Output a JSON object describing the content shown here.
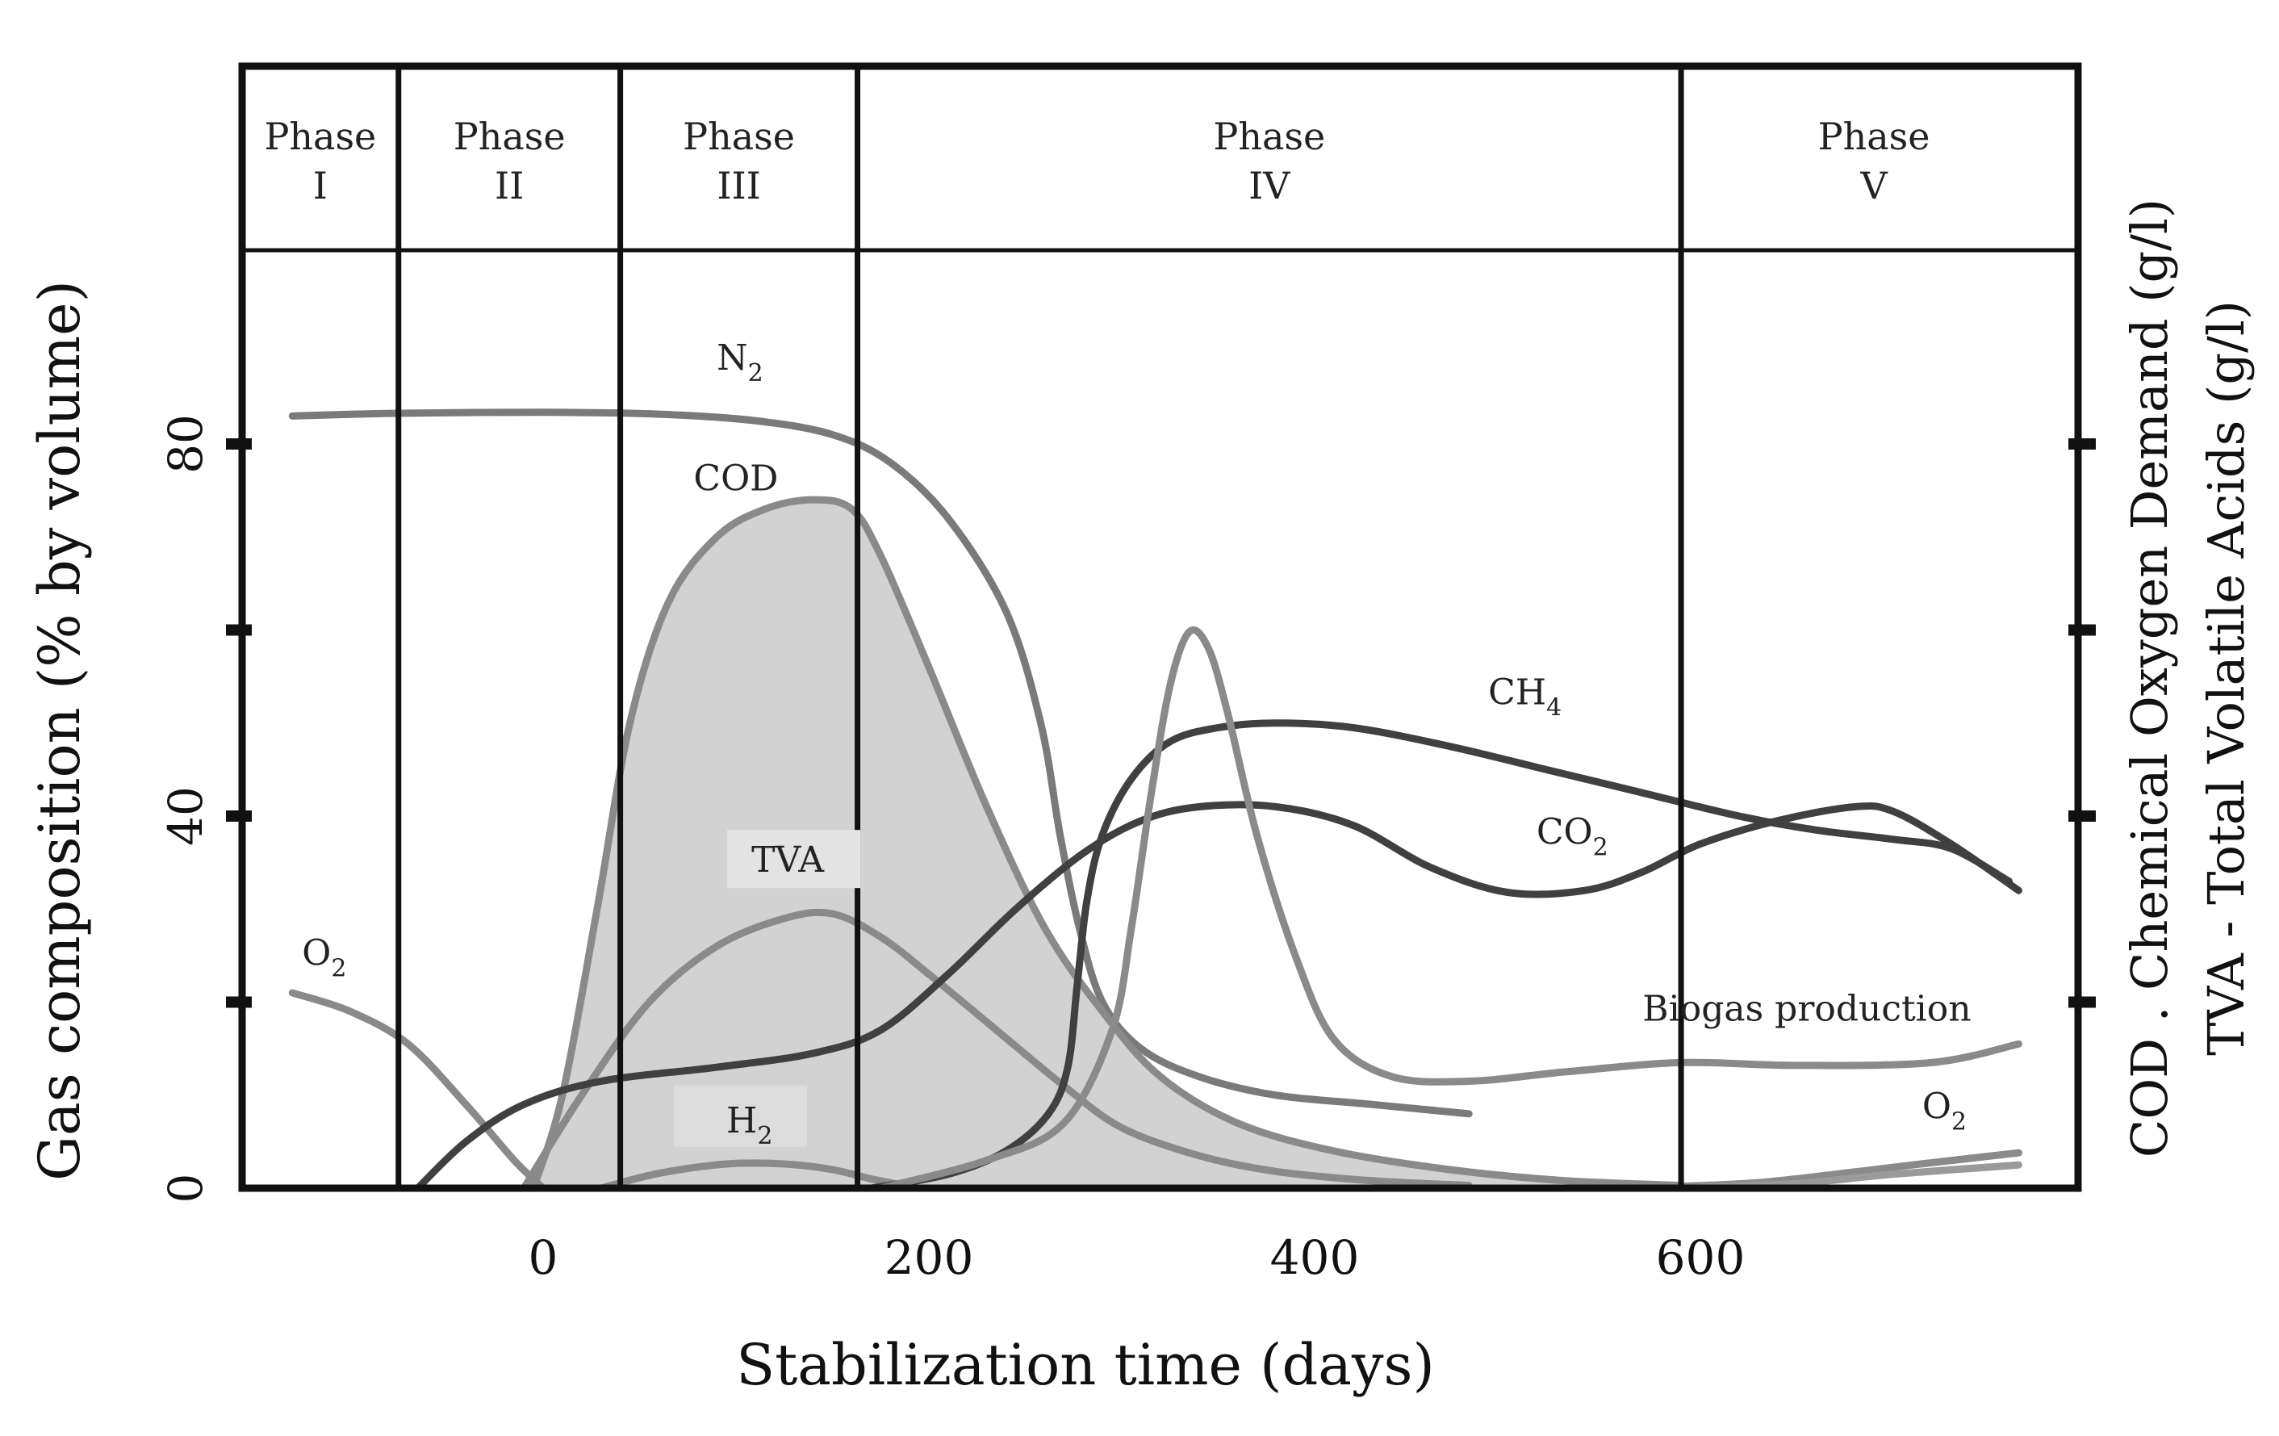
{
  "chart_data": {
    "type": "line",
    "title": "",
    "xlabel": "Stabilization time (days)",
    "ylabel": "Gas composition (% by volume)",
    "ylabel_right": [
      "COD . Chemical Oxygen Demand (g/l)",
      "TVA - Total Volatile Acids (g/l)"
    ],
    "xlim": [
      -160,
      790
    ],
    "ylim": [
      0,
      120
    ],
    "x_ticks": [
      0,
      200,
      400,
      600
    ],
    "y_ticks": [
      0,
      40,
      80
    ],
    "right_axis_ticks": [
      20,
      40,
      60,
      80
    ],
    "grid": false,
    "phases": [
      {
        "line1": "Phase",
        "line2": "I",
        "start": -160,
        "end": -75
      },
      {
        "line1": "Phase",
        "line2": "II",
        "start": -75,
        "end": 40
      },
      {
        "line1": "Phase",
        "line2": "III",
        "start": 40,
        "end": 163
      },
      {
        "line1": "Phase",
        "line2": "IV",
        "start": 163,
        "end": 590
      },
      {
        "line1": "Phase",
        "line2": "V",
        "start": 590,
        "end": 790
      }
    ],
    "series": [
      {
        "name": "N2",
        "label_main": "N",
        "label_sub": "2",
        "color": "#7a7a7a",
        "label_at": [
          90,
          88
        ],
        "points": [
          [
            -130,
            83
          ],
          [
            -75,
            83.3
          ],
          [
            0,
            83.4
          ],
          [
            60,
            83.2
          ],
          [
            110,
            82.5
          ],
          [
            150,
            81
          ],
          [
            180,
            78
          ],
          [
            210,
            72
          ],
          [
            240,
            62
          ],
          [
            258,
            50
          ],
          [
            268,
            38
          ],
          [
            278,
            28
          ],
          [
            290,
            20
          ],
          [
            310,
            15
          ],
          [
            340,
            12
          ],
          [
            380,
            10
          ],
          [
            430,
            9
          ],
          [
            480,
            8
          ]
        ]
      },
      {
        "name": "COD",
        "label_main": "COD",
        "label_sub": "",
        "color": "#8a8a8a",
        "fill": "#d2d2d2",
        "label_at": [
          78,
          75
        ],
        "points": [
          [
            -5,
            0
          ],
          [
            10,
            10
          ],
          [
            28,
            30
          ],
          [
            45,
            50
          ],
          [
            65,
            63
          ],
          [
            90,
            70
          ],
          [
            115,
            73
          ],
          [
            140,
            74
          ],
          [
            160,
            73
          ],
          [
            175,
            68
          ],
          [
            200,
            56
          ],
          [
            230,
            41
          ],
          [
            260,
            28
          ],
          [
            290,
            19
          ],
          [
            320,
            12
          ],
          [
            360,
            7
          ],
          [
            410,
            4
          ],
          [
            470,
            2
          ],
          [
            530,
            0.8
          ],
          [
            590,
            0.3
          ]
        ]
      },
      {
        "name": "TVA",
        "label_main": "TVA",
        "label_sub": "",
        "color": "#8a8a8a",
        "label_at": [
          108,
          34
        ],
        "points": [
          [
            -10,
            0
          ],
          [
            20,
            10
          ],
          [
            55,
            20
          ],
          [
            90,
            26
          ],
          [
            125,
            29
          ],
          [
            150,
            29.5
          ],
          [
            175,
            27
          ],
          [
            200,
            23
          ],
          [
            235,
            17
          ],
          [
            270,
            11
          ],
          [
            300,
            6.5
          ],
          [
            340,
            3.5
          ],
          [
            380,
            1.8
          ],
          [
            430,
            0.8
          ],
          [
            480,
            0.3
          ]
        ]
      },
      {
        "name": "H2",
        "label_main": "H",
        "label_sub": "2",
        "color": "#8a8a8a",
        "label_at": [
          95,
          6
        ],
        "points": [
          [
            30,
            0
          ],
          [
            60,
            1.6
          ],
          [
            95,
            2.6
          ],
          [
            125,
            2.6
          ],
          [
            150,
            2
          ],
          [
            170,
            1
          ],
          [
            190,
            0.2
          ]
        ]
      },
      {
        "name": "O2 (early)",
        "label_main": "O",
        "label_sub": "2",
        "color": "#8a8a8a",
        "label_at": [
          -125,
          24
        ],
        "points": [
          [
            -130,
            21
          ],
          [
            -100,
            19
          ],
          [
            -70,
            15.5
          ],
          [
            -40,
            9
          ],
          [
            -15,
            3
          ],
          [
            0,
            0
          ]
        ]
      },
      {
        "name": "CH4",
        "label_main": "CH",
        "label_sub": "4",
        "color": "#404040",
        "label_at": [
          490,
          52
        ],
        "points": [
          [
            170,
            0
          ],
          [
            210,
            1.5
          ],
          [
            240,
            4
          ],
          [
            262,
            8
          ],
          [
            272,
            13
          ],
          [
            277,
            22
          ],
          [
            282,
            31
          ],
          [
            290,
            38
          ],
          [
            305,
            44
          ],
          [
            325,
            48
          ],
          [
            350,
            49.5
          ],
          [
            380,
            50
          ],
          [
            420,
            49.5
          ],
          [
            470,
            47.5
          ],
          [
            520,
            45
          ],
          [
            570,
            42.5
          ],
          [
            620,
            40
          ],
          [
            660,
            38.5
          ],
          [
            700,
            37.5
          ],
          [
            730,
            36.5
          ],
          [
            760,
            33
          ]
        ]
      },
      {
        "name": "CO2",
        "label_main": "CO",
        "label_sub": "2",
        "color": "#404040",
        "label_at": [
          515,
          37
        ],
        "points": [
          [
            -65,
            0
          ],
          [
            -40,
            5
          ],
          [
            -10,
            9
          ],
          [
            30,
            11.5
          ],
          [
            90,
            13
          ],
          [
            140,
            14.5
          ],
          [
            175,
            17
          ],
          [
            210,
            23
          ],
          [
            245,
            30
          ],
          [
            280,
            36
          ],
          [
            310,
            39.5
          ],
          [
            340,
            41
          ],
          [
            380,
            41
          ],
          [
            420,
            39
          ],
          [
            460,
            34.5
          ],
          [
            500,
            31.8
          ],
          [
            540,
            32
          ],
          [
            570,
            34
          ],
          [
            600,
            37
          ],
          [
            640,
            39.5
          ],
          [
            680,
            41
          ],
          [
            700,
            40.5
          ],
          [
            730,
            37
          ],
          [
            765,
            32
          ]
        ]
      },
      {
        "name": "Biogas production",
        "label_main": "Biogas production",
        "label_sub": "",
        "color": "#8a8a8a",
        "label_at": [
          570,
          18
        ],
        "points": [
          [
            175,
            0
          ],
          [
            230,
            3
          ],
          [
            270,
            7
          ],
          [
            295,
            17
          ],
          [
            305,
            28
          ],
          [
            315,
            42
          ],
          [
            325,
            54
          ],
          [
            335,
            59.8
          ],
          [
            345,
            58
          ],
          [
            355,
            51
          ],
          [
            370,
            38
          ],
          [
            390,
            25
          ],
          [
            410,
            16
          ],
          [
            440,
            12
          ],
          [
            480,
            11.5
          ],
          [
            530,
            12.5
          ],
          [
            590,
            13.5
          ],
          [
            650,
            13.2
          ],
          [
            720,
            13.5
          ],
          [
            765,
            15.5
          ]
        ]
      },
      {
        "name": "O2 (late)",
        "label_main": "O",
        "label_sub": "2",
        "color": "#8a8a8a",
        "label_at": [
          715,
          7.5
        ],
        "points": [
          [
            590,
            0.2
          ],
          [
            630,
            0.6
          ],
          [
            670,
            1.5
          ],
          [
            710,
            2.5
          ],
          [
            765,
            3.8
          ]
        ]
      },
      {
        "name": "O2 (late, lower)",
        "label_main": "",
        "label_sub": "",
        "color": "#9a9a9a",
        "points": [
          [
            600,
            0.1
          ],
          [
            650,
            0.5
          ],
          [
            700,
            1.5
          ],
          [
            765,
            2.5
          ]
        ]
      }
    ]
  }
}
